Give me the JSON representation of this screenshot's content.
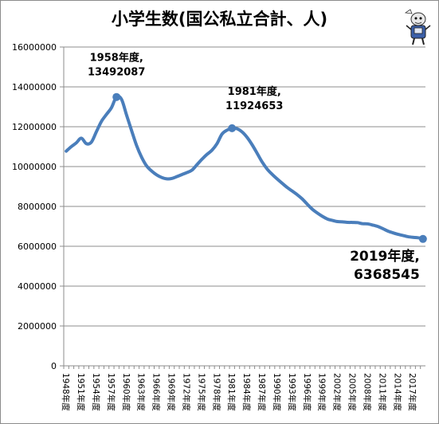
{
  "chart_data": {
    "type": "line",
    "title": "小学生数(国公私立合計、人)",
    "xlabel": "",
    "ylabel": "",
    "ylim": [
      0,
      16000000
    ],
    "yticks": [
      0,
      2000000,
      4000000,
      6000000,
      8000000,
      10000000,
      12000000,
      14000000,
      16000000
    ],
    "grid": "horizontal",
    "legend": "none",
    "line_color": "#4a7ebb",
    "categories": [
      "1948年度",
      "1949年度",
      "1950年度",
      "1951年度",
      "1952年度",
      "1953年度",
      "1954年度",
      "1955年度",
      "1956年度",
      "1957年度",
      "1958年度",
      "1959年度",
      "1960年度",
      "1961年度",
      "1962年度",
      "1963年度",
      "1964年度",
      "1965年度",
      "1966年度",
      "1967年度",
      "1968年度",
      "1969年度",
      "1970年度",
      "1971年度",
      "1972年度",
      "1973年度",
      "1974年度",
      "1975年度",
      "1976年度",
      "1977年度",
      "1978年度",
      "1979年度",
      "1980年度",
      "1981年度",
      "1982年度",
      "1983年度",
      "1984年度",
      "1985年度",
      "1986年度",
      "1987年度",
      "1988年度",
      "1989年度",
      "1990年度",
      "1991年度",
      "1992年度",
      "1993年度",
      "1994年度",
      "1995年度",
      "1996年度",
      "1997年度",
      "1998年度",
      "1999年度",
      "2000年度",
      "2001年度",
      "2002年度",
      "2003年度",
      "2004年度",
      "2005年度",
      "2006年度",
      "2007年度",
      "2008年度",
      "2009年度",
      "2010年度",
      "2011年度",
      "2012年度",
      "2013年度",
      "2014年度",
      "2015年度",
      "2016年度",
      "2017年度",
      "2018年度",
      "2019年度"
    ],
    "xtick_labels": [
      "1948年度",
      "1951年度",
      "1954年度",
      "1957年度",
      "1960年度",
      "1963年度",
      "1966年度",
      "1969年度",
      "1972年度",
      "1975年度",
      "1978年度",
      "1981年度",
      "1984年度",
      "1987年度",
      "1990年度",
      "1993年度",
      "1996年度",
      "1999年度",
      "2002年度",
      "2005年度",
      "2008年度",
      "2011年度",
      "2014年度",
      "2017年度"
    ],
    "series": [
      {
        "values": [
          10775000,
          11000000,
          11191000,
          11424000,
          11149000,
          11225000,
          11751000,
          12267000,
          12616000,
          12956000,
          13492087,
          13375000,
          12591000,
          11811000,
          11057000,
          10471000,
          10031000,
          9775000,
          9584000,
          9453000,
          9383000,
          9403000,
          9493000,
          9596000,
          9696000,
          9816000,
          10089000,
          10365000,
          10609000,
          10819000,
          11146000,
          11630000,
          11827000,
          11924653,
          11902000,
          11739000,
          11465000,
          11095000,
          10665000,
          10227000,
          9872000,
          9607000,
          9373000,
          9157000,
          8947000,
          8768000,
          8583000,
          8370000,
          8105000,
          7855000,
          7664000,
          7500000,
          7366000,
          7296000,
          7239000,
          7227000,
          7200000,
          7197000,
          7187000,
          7133000,
          7122000,
          7064000,
          6993000,
          6887000,
          6765000,
          6677000,
          6601000,
          6543000,
          6483000,
          6449000,
          6428000,
          6368545
        ]
      }
    ],
    "annotations": [
      {
        "year": "1958年度",
        "label_line1": "1958年度,",
        "label_line2": "13492087"
      },
      {
        "year": "1981年度",
        "label_line1": "1981年度,",
        "label_line2": "11924653"
      },
      {
        "year": "2019年度",
        "label_line1": "2019年度,",
        "label_line2": "6368545"
      }
    ]
  }
}
